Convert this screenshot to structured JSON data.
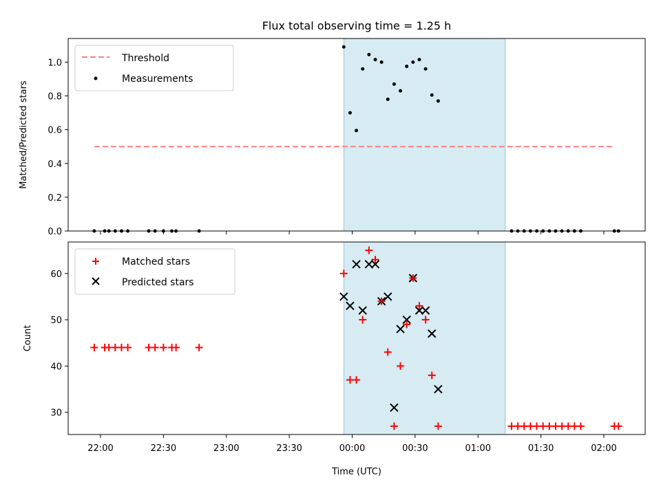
{
  "chart_data": [
    {
      "type": "scatter",
      "title": "Flux total observing time = 1.25 h",
      "ylabel": "Matched/Predicted stars",
      "xlabel": "",
      "ylim": [
        0,
        1.14
      ],
      "yticks": [
        "0.0",
        "0.2",
        "0.4",
        "0.6",
        "0.8",
        "1.0"
      ],
      "shaded_range": [
        "23:56",
        "01:13"
      ],
      "legend": {
        "placement": "top-left"
      },
      "threshold": {
        "name": "Threshold",
        "value": 0.5,
        "x_range": [
          "21:57",
          "02:05"
        ],
        "color": "#ff7f7f",
        "style": "dashed"
      },
      "series": [
        {
          "name": "Measurements",
          "marker": "dot",
          "color": "#000000",
          "points": [
            [
              "21:57",
              0.0
            ],
            [
              "22:02",
              0.0
            ],
            [
              "22:04",
              0.0
            ],
            [
              "22:07",
              0.0
            ],
            [
              "22:10",
              0.0
            ],
            [
              "22:13",
              0.0
            ],
            [
              "22:23",
              0.0
            ],
            [
              "22:26",
              0.0
            ],
            [
              "22:30",
              0.0
            ],
            [
              "22:34",
              0.0
            ],
            [
              "22:36",
              0.0
            ],
            [
              "22:47",
              0.0
            ],
            [
              "23:56",
              1.09
            ],
            [
              "23:59",
              0.7
            ],
            [
              "00:02",
              0.595
            ],
            [
              "00:05",
              0.96
            ],
            [
              "00:08",
              1.045
            ],
            [
              "00:11",
              1.015
            ],
            [
              "00:14",
              1.0
            ],
            [
              "00:17",
              0.78
            ],
            [
              "00:20",
              0.87
            ],
            [
              "00:23",
              0.83
            ],
            [
              "00:26",
              0.975
            ],
            [
              "00:29",
              1.0
            ],
            [
              "00:32",
              1.015
            ],
            [
              "00:35",
              0.96
            ],
            [
              "00:38",
              0.805
            ],
            [
              "00:41",
              0.77
            ],
            [
              "01:16",
              0.0
            ],
            [
              "01:19",
              0.0
            ],
            [
              "01:22",
              0.0
            ],
            [
              "01:25",
              0.0
            ],
            [
              "01:28",
              0.0
            ],
            [
              "01:31",
              0.0
            ],
            [
              "01:34",
              0.0
            ],
            [
              "01:37",
              0.0
            ],
            [
              "01:40",
              0.0
            ],
            [
              "01:43",
              0.0
            ],
            [
              "01:46",
              0.0
            ],
            [
              "01:49",
              0.0
            ],
            [
              "02:05",
              0.0
            ],
            [
              "02:07",
              0.0
            ]
          ]
        }
      ]
    },
    {
      "type": "scatter",
      "title": "",
      "ylabel": "Count",
      "xlabel": "Time (UTC)",
      "ylim": [
        25.2,
        66.8
      ],
      "yticks": [
        "30",
        "40",
        "50",
        "60"
      ],
      "xticks": [
        "22:00",
        "22:30",
        "23:00",
        "23:30",
        "00:00",
        "00:30",
        "01:00",
        "01:30",
        "02:00"
      ],
      "shaded_range": [
        "23:56",
        "01:13"
      ],
      "legend": {
        "placement": "top-left"
      },
      "series": [
        {
          "name": "Matched stars",
          "marker": "plus",
          "color": "#ff0000",
          "points": [
            [
              "21:57",
              44
            ],
            [
              "22:02",
              44
            ],
            [
              "22:04",
              44
            ],
            [
              "22:07",
              44
            ],
            [
              "22:10",
              44
            ],
            [
              "22:13",
              44
            ],
            [
              "22:23",
              44
            ],
            [
              "22:26",
              44
            ],
            [
              "22:30",
              44
            ],
            [
              "22:34",
              44
            ],
            [
              "22:36",
              44
            ],
            [
              "22:47",
              44
            ],
            [
              "23:56",
              60
            ],
            [
              "23:59",
              37
            ],
            [
              "00:02",
              37
            ],
            [
              "00:05",
              50
            ],
            [
              "00:08",
              65
            ],
            [
              "00:11",
              63
            ],
            [
              "00:14",
              54
            ],
            [
              "00:17",
              43
            ],
            [
              "00:20",
              27
            ],
            [
              "00:23",
              40
            ],
            [
              "00:26",
              49
            ],
            [
              "00:29",
              59
            ],
            [
              "00:32",
              53
            ],
            [
              "00:35",
              50
            ],
            [
              "00:38",
              38
            ],
            [
              "00:41",
              27
            ],
            [
              "01:16",
              27
            ],
            [
              "01:19",
              27
            ],
            [
              "01:22",
              27
            ],
            [
              "01:25",
              27
            ],
            [
              "01:28",
              27
            ],
            [
              "01:31",
              27
            ],
            [
              "01:34",
              27
            ],
            [
              "01:37",
              27
            ],
            [
              "01:40",
              27
            ],
            [
              "01:43",
              27
            ],
            [
              "01:46",
              27
            ],
            [
              "01:49",
              27
            ],
            [
              "02:05",
              27
            ],
            [
              "02:07",
              27
            ]
          ]
        },
        {
          "name": "Predicted stars",
          "marker": "x",
          "color": "#000000",
          "points": [
            [
              "23:56",
              55
            ],
            [
              "23:59",
              53
            ],
            [
              "00:02",
              62
            ],
            [
              "00:05",
              52
            ],
            [
              "00:08",
              62
            ],
            [
              "00:11",
              62
            ],
            [
              "00:14",
              54
            ],
            [
              "00:17",
              55
            ],
            [
              "00:20",
              31
            ],
            [
              "00:23",
              48
            ],
            [
              "00:26",
              50
            ],
            [
              "00:29",
              59
            ],
            [
              "00:32",
              52
            ],
            [
              "00:35",
              52
            ],
            [
              "00:38",
              47
            ],
            [
              "00:41",
              35
            ]
          ]
        }
      ]
    }
  ]
}
